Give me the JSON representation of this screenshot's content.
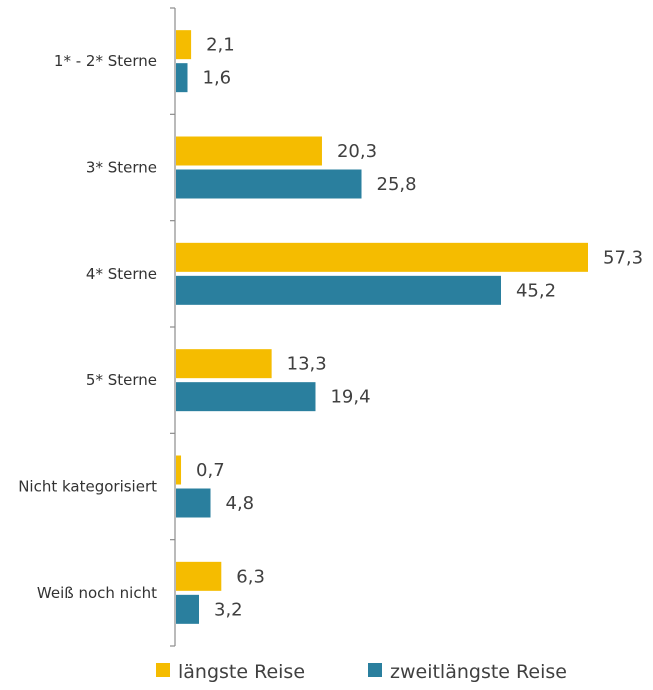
{
  "chart_data": {
    "type": "bar",
    "orientation": "horizontal",
    "categories": [
      "1* - 2* Sterne",
      "3* Sterne",
      "4* Sterne",
      "5* Sterne",
      "Nicht kategorisiert",
      "Weiß noch nicht"
    ],
    "series": [
      {
        "name": "längste Reise",
        "values": [
          2.1,
          20.3,
          57.3,
          13.3,
          0.7,
          6.3
        ],
        "value_labels": [
          "2,1",
          "20,3",
          "57,3",
          "13,3",
          "0,7",
          "6,3"
        ],
        "color": "#f5bc00"
      },
      {
        "name": "zweitlängste Reise",
        "values": [
          1.6,
          25.8,
          45.2,
          19.4,
          4.8,
          3.2
        ],
        "value_labels": [
          "1,6",
          "25,8",
          "45,2",
          "19,4",
          "4,8",
          "3,2"
        ],
        "color": "#2a7f9e"
      }
    ],
    "xlim": [
      0,
      57.3
    ],
    "grid": false,
    "legend_position": "bottom"
  }
}
